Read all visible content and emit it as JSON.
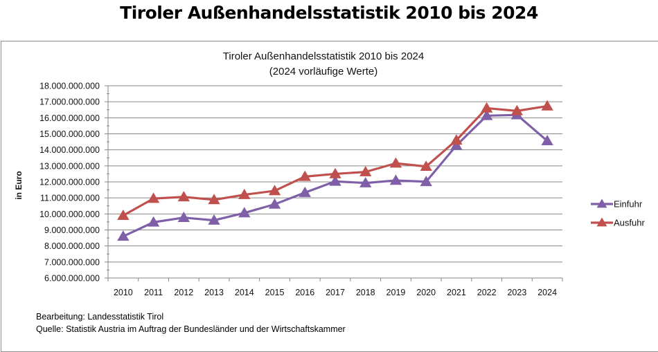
{
  "page": {
    "title": "Tiroler Außenhandelsstatistik 2010 bis 2024"
  },
  "footer": {
    "processing": "Bearbeitung: Landesstatistik Tirol",
    "source": "Quelle: Statistik Austria im Auftrag der Bundesländer und der Wirtschaftskammer"
  },
  "chart_data": {
    "type": "line",
    "title": "Tiroler Außenhandelsstatistik 2010 bis 2024",
    "subtitle": "(2024 vorläufige Werte)",
    "xlabel": "",
    "ylabel": "in Euro",
    "ylim": [
      6000000000,
      18000000000
    ],
    "ytick_step": 1000000000,
    "ytick_labels": [
      "6.000.000.000",
      "7.000.000.000",
      "8.000.000.000",
      "9.000.000.000",
      "10.000.000.000",
      "11.000.000.000",
      "12.000.000.000",
      "13.000.000.000",
      "14.000.000.000",
      "15.000.000.000",
      "16.000.000.000",
      "17.000.000.000",
      "18.000.000.000"
    ],
    "grid": true,
    "legend_position": "right",
    "categories": [
      "2010",
      "2011",
      "2012",
      "2013",
      "2014",
      "2015",
      "2016",
      "2017",
      "2018",
      "2019",
      "2020",
      "2021",
      "2022",
      "2023",
      "2024"
    ],
    "series": [
      {
        "name": "Einfuhr",
        "color": "#7f60a8",
        "marker": "triangle",
        "values": [
          8600000000,
          9480000000,
          9770000000,
          9600000000,
          10060000000,
          10600000000,
          11330000000,
          12030000000,
          11930000000,
          12090000000,
          12010000000,
          14270000000,
          16130000000,
          16180000000,
          14560000000
        ]
      },
      {
        "name": "Ausfuhr",
        "color": "#c0504d",
        "marker": "triangle",
        "values": [
          9900000000,
          10960000000,
          11060000000,
          10880000000,
          11200000000,
          11440000000,
          12330000000,
          12500000000,
          12620000000,
          13160000000,
          12960000000,
          14600000000,
          16600000000,
          16430000000,
          16730000000
        ]
      }
    ]
  }
}
